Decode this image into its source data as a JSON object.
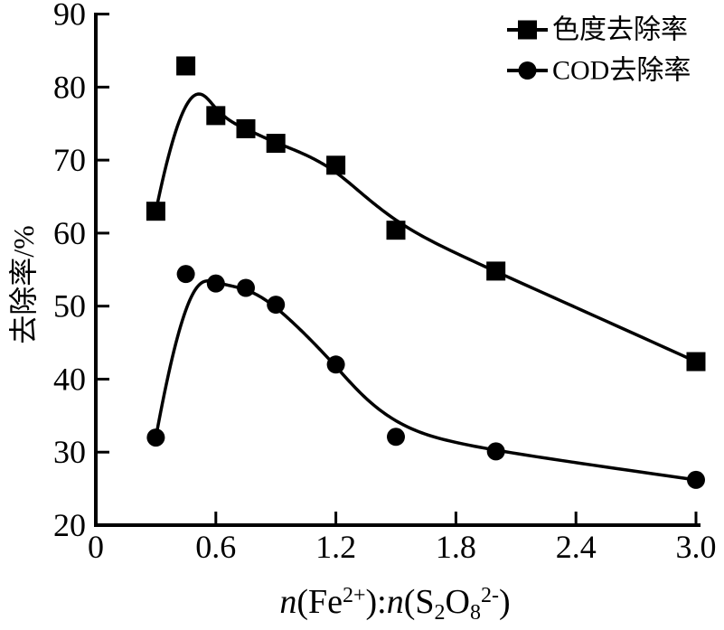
{
  "figure": {
    "background": "#ffffff",
    "ink_color": "#000000"
  },
  "chart_data": {
    "type": "line",
    "title": "",
    "xlabel": "n(Fe2+):n(S2O82-)",
    "xlabel_segments": [
      {
        "text": "n",
        "italic": true
      },
      {
        "text": "(Fe"
      },
      {
        "text": "2+",
        "script": "sup"
      },
      {
        "text": "):"
      },
      {
        "text": "n",
        "italic": true
      },
      {
        "text": "(S"
      },
      {
        "text": "2",
        "script": "sub"
      },
      {
        "text": "O"
      },
      {
        "text": "8",
        "script": "sub"
      },
      {
        "text": "2-",
        "script": "sup"
      },
      {
        "text": ")"
      }
    ],
    "ylabel": "去除率/%",
    "xlim": [
      0,
      3.0
    ],
    "ylim": [
      20,
      90
    ],
    "x_ticks": [
      0,
      0.6,
      1.2,
      1.8,
      2.4,
      3.0
    ],
    "x_tick_labels": [
      "0",
      "0.6",
      "1.2",
      "1.8",
      "2.4",
      "3.0"
    ],
    "y_ticks": [
      20,
      30,
      40,
      50,
      60,
      70,
      80,
      90
    ],
    "y_tick_labels": [
      "20",
      "30",
      "40",
      "50",
      "60",
      "70",
      "80",
      "90"
    ],
    "grid": false,
    "legend_position": "top-right",
    "curve_style": "b-spline",
    "x": [
      0.3,
      0.45,
      0.6,
      0.75,
      0.9,
      1.2,
      1.5,
      2.0,
      3.0
    ],
    "series": [
      {
        "name": "色度去除率",
        "marker": "square",
        "color": "#000000",
        "values": [
          63.0,
          82.9,
          76.1,
          74.3,
          72.3,
          69.3,
          60.4,
          54.8,
          42.4
        ]
      },
      {
        "name": "COD去除率",
        "marker": "circle",
        "color": "#000000",
        "values": [
          32.0,
          54.4,
          53.1,
          52.5,
          50.2,
          42.0,
          32.1,
          30.1,
          26.2
        ]
      }
    ]
  }
}
